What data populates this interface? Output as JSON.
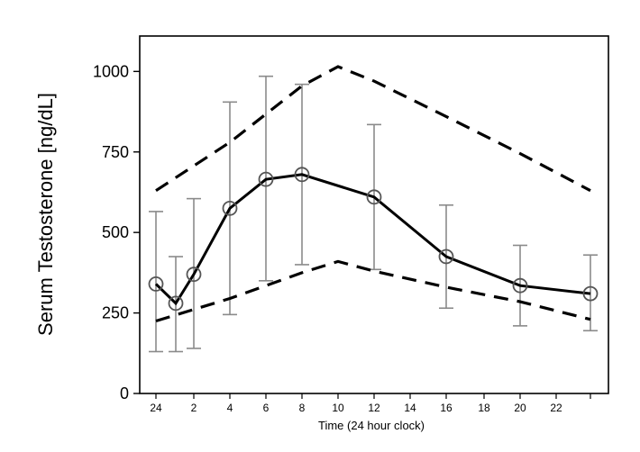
{
  "chart_data": {
    "type": "line",
    "title": "",
    "xlabel": "Time (24 hour clock)",
    "ylabel": "Serum Testosterone [ng/dL]",
    "x_tick_labels": [
      "24",
      "2",
      "4",
      "6",
      "8",
      "10",
      "12",
      "14",
      "16",
      "18",
      "20",
      "22"
    ],
    "y_ticks": [
      0,
      250,
      500,
      750,
      1000
    ],
    "y_tick_labels": [
      "0",
      "250",
      "500",
      "750",
      "1000"
    ],
    "ylim": [
      0,
      1110
    ],
    "grid": false,
    "legend": "none",
    "series": [
      {
        "role": "mean",
        "line_style": "solid",
        "markers": "open-circle",
        "color": "#000000",
        "points": [
          {
            "x": "24",
            "y": 340,
            "err_low": 130,
            "err_high": 565
          },
          {
            "x": "1",
            "y": 280,
            "err_low": 130,
            "err_high": 425
          },
          {
            "x": "2",
            "y": 370,
            "err_low": 140,
            "err_high": 605
          },
          {
            "x": "4",
            "y": 575,
            "err_low": 245,
            "err_high": 905
          },
          {
            "x": "6",
            "y": 665,
            "err_low": 350,
            "err_high": 985
          },
          {
            "x": "8",
            "y": 680,
            "err_low": 400,
            "err_high": 960
          },
          {
            "x": "12",
            "y": 610,
            "err_low": 385,
            "err_high": 835
          },
          {
            "x": "16",
            "y": 425,
            "err_low": 265,
            "err_high": 585
          },
          {
            "x": "20",
            "y": 335,
            "err_low": 210,
            "err_high": 460
          },
          {
            "x": "24",
            "y": 310,
            "err_low": 195,
            "err_high": 430
          }
        ]
      },
      {
        "role": "upper-bound",
        "line_style": "dashed",
        "color": "#000000",
        "points": [
          {
            "x": "24",
            "y": 630
          },
          {
            "x": "4",
            "y": 780
          },
          {
            "x": "8",
            "y": 955
          },
          {
            "x": "10",
            "y": 1015
          },
          {
            "x": "12",
            "y": 970
          },
          {
            "x": "16",
            "y": 860
          },
          {
            "x": "20",
            "y": 745
          },
          {
            "x": "24",
            "y": 630
          }
        ]
      },
      {
        "role": "lower-bound",
        "line_style": "dashed",
        "color": "#000000",
        "points": [
          {
            "x": "24",
            "y": 225
          },
          {
            "x": "4",
            "y": 295
          },
          {
            "x": "8",
            "y": 375
          },
          {
            "x": "10",
            "y": 410
          },
          {
            "x": "12",
            "y": 380
          },
          {
            "x": "16",
            "y": 330
          },
          {
            "x": "20",
            "y": 285
          },
          {
            "x": "24",
            "y": 230
          }
        ]
      }
    ],
    "colors": {
      "axis": "#000000",
      "error_bar": "#8a8a8a",
      "marker_stroke": "#555555"
    }
  }
}
